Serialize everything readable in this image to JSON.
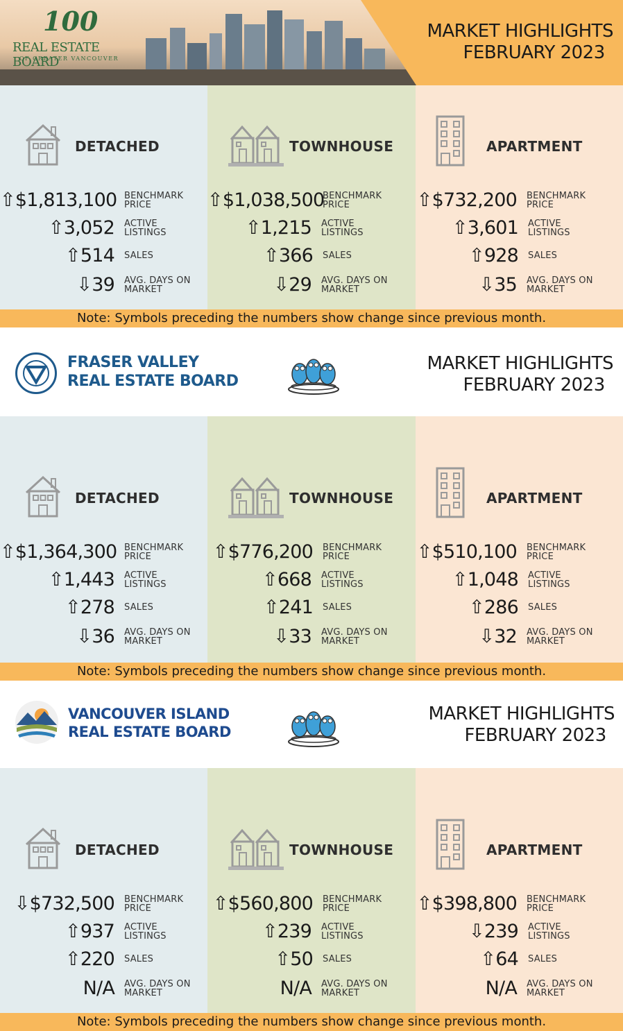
{
  "note": "Note: Symbols preceding the numbers show change since previous month.",
  "colors": {
    "accent": "#f8b85b",
    "detached_bg": "#e3ecee",
    "townhouse_bg": "#dfe5c8",
    "apartment_bg": "#fbe6d3",
    "fraser_blue": "#1e5a8c",
    "vi_blue": "#1e4b8f"
  },
  "boards": [
    {
      "logo": {
        "line1": "REAL ESTATE BOARD",
        "line2": "OF GREATER VANCOUVER",
        "badge": "100"
      },
      "title": {
        "line1": "MARKET HIGHLIGHTS",
        "line2": "FEBRUARY 2023"
      },
      "types": [
        {
          "name": "DETACHED",
          "icon": "house-icon",
          "rows": [
            {
              "arrow": "⇧",
              "value": "$1,813,100",
              "label": "BENCHMARK\nPRICE"
            },
            {
              "arrow": "⇧",
              "value": "3,052",
              "label": "ACTIVE\nLISTINGS"
            },
            {
              "arrow": "⇧",
              "value": "514",
              "label": "SALES"
            },
            {
              "arrow": "⇩",
              "value": "39",
              "label": "AVG. DAYS ON\nMARKET"
            }
          ]
        },
        {
          "name": "TOWNHOUSE",
          "icon": "townhouse-icon",
          "rows": [
            {
              "arrow": "⇧",
              "value": "$1,038,500",
              "label": "BENCHMARK\nPRICE"
            },
            {
              "arrow": "⇧",
              "value": "1,215",
              "label": "ACTIVE\nLISTINGS"
            },
            {
              "arrow": "⇧",
              "value": "366",
              "label": "SALES"
            },
            {
              "arrow": "⇩",
              "value": "29",
              "label": "AVG. DAYS ON\nMARKET"
            }
          ]
        },
        {
          "name": "APARTMENT",
          "icon": "apartment-icon",
          "rows": [
            {
              "arrow": "⇧",
              "value": "$732,200",
              "label": "BENCHMARK\nPRICE"
            },
            {
              "arrow": "⇧",
              "value": "3,601",
              "label": "ACTIVE\nLISTINGS"
            },
            {
              "arrow": "⇧",
              "value": "928",
              "label": "SALES"
            },
            {
              "arrow": "⇩",
              "value": "35",
              "label": "AVG. DAYS ON\nMARKET"
            }
          ]
        }
      ]
    },
    {
      "logo": {
        "line1": "FRASER VALLEY",
        "line2": "REAL ESTATE BOARD"
      },
      "title": {
        "line1": "MARKET HIGHLIGHTS",
        "line2": "FEBRUARY 2023"
      },
      "types": [
        {
          "name": "DETACHED",
          "icon": "house-icon",
          "rows": [
            {
              "arrow": "⇧",
              "value": "$1,364,300",
              "label": "BENCHMARK\nPRICE"
            },
            {
              "arrow": "⇧",
              "value": "1,443",
              "label": "ACTIVE\nLISTINGS"
            },
            {
              "arrow": "⇧",
              "value": "278",
              "label": "SALES"
            },
            {
              "arrow": "⇩",
              "value": "36",
              "label": "AVG. DAYS ON\nMARKET"
            }
          ]
        },
        {
          "name": "TOWNHOUSE",
          "icon": "townhouse-icon",
          "rows": [
            {
              "arrow": "⇧",
              "value": "$776,200",
              "label": "BENCHMARK\nPRICE"
            },
            {
              "arrow": "⇧",
              "value": "668",
              "label": "ACTIVE\nLISTINGS"
            },
            {
              "arrow": "⇧",
              "value": "241",
              "label": "SALES"
            },
            {
              "arrow": "⇩",
              "value": "33",
              "label": "AVG. DAYS ON\nMARKET"
            }
          ]
        },
        {
          "name": "APARTMENT",
          "icon": "apartment-icon",
          "rows": [
            {
              "arrow": "⇧",
              "value": "$510,100",
              "label": "BENCHMARK\nPRICE"
            },
            {
              "arrow": "⇧",
              "value": "1,048",
              "label": "ACTIVE\nLISTINGS"
            },
            {
              "arrow": "⇧",
              "value": "286",
              "label": "SALES"
            },
            {
              "arrow": "⇩",
              "value": "32",
              "label": "AVG. DAYS ON\nMARKET"
            }
          ]
        }
      ]
    },
    {
      "logo": {
        "line1": "VANCOUVER ISLAND",
        "line2": "REAL ESTATE BOARD"
      },
      "title": {
        "line1": "MARKET HIGHLIGHTS",
        "line2": "FEBRUARY 2023"
      },
      "types": [
        {
          "name": "DETACHED",
          "icon": "house-icon",
          "rows": [
            {
              "arrow": "⇩",
              "value": "$732,500",
              "label": "BENCHMARK\nPRICE"
            },
            {
              "arrow": "⇧",
              "value": "937",
              "label": "ACTIVE\nLISTINGS"
            },
            {
              "arrow": "⇧",
              "value": "220",
              "label": "SALES"
            },
            {
              "arrow": "",
              "value": "N/A",
              "label": "AVG. DAYS ON\nMARKET"
            }
          ]
        },
        {
          "name": "TOWNHOUSE",
          "icon": "townhouse-icon",
          "rows": [
            {
              "arrow": "⇧",
              "value": "$560,800",
              "label": "BENCHMARK\nPRICE"
            },
            {
              "arrow": "⇧",
              "value": "239",
              "label": "ACTIVE\nLISTINGS"
            },
            {
              "arrow": "⇧",
              "value": "50",
              "label": "SALES"
            },
            {
              "arrow": "",
              "value": "N/A",
              "label": "AVG. DAYS ON\nMARKET"
            }
          ]
        },
        {
          "name": "APARTMENT",
          "icon": "apartment-icon",
          "rows": [
            {
              "arrow": "⇧",
              "value": "$398,800",
              "label": "BENCHMARK\nPRICE"
            },
            {
              "arrow": "⇩",
              "value": "239",
              "label": "ACTIVE\nLISTINGS"
            },
            {
              "arrow": "⇧",
              "value": "64",
              "label": "SALES"
            },
            {
              "arrow": "",
              "value": "N/A",
              "label": "AVG. DAYS ON\nMARKET"
            }
          ]
        }
      ]
    }
  ]
}
